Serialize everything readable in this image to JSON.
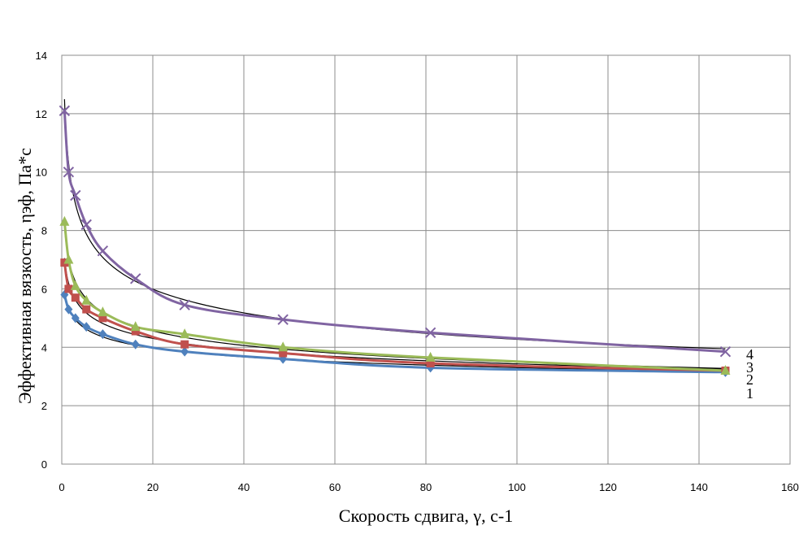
{
  "chart_data": {
    "type": "line",
    "xlabel": "Скорость сдвига, γ, с-1",
    "ylabel": "Эффективная вязкость, ηэф, Па*с",
    "xlim": [
      0,
      160
    ],
    "ylim": [
      0,
      14
    ],
    "x_ticks": [
      "0",
      "20",
      "40",
      "60",
      "80",
      "100",
      "120",
      "140",
      "160"
    ],
    "y_ticks": [
      "0",
      "2",
      "4",
      "6",
      "8",
      "10",
      "12",
      "14"
    ],
    "grid": true,
    "series": [
      {
        "name": "1",
        "color": "#4F81BD",
        "marker": "diamond",
        "x": [
          0.6,
          1.5,
          3,
          5.4,
          9,
          16.2,
          27,
          48.6,
          81,
          145.8
        ],
        "y": [
          5.8,
          5.3,
          5.0,
          4.7,
          4.45,
          4.1,
          3.85,
          3.6,
          3.3,
          3.15
        ]
      },
      {
        "name": "2",
        "color": "#C0504D",
        "marker": "square",
        "x": [
          0.6,
          1.5,
          3,
          5.4,
          9,
          16.2,
          27,
          48.6,
          81,
          145.8
        ],
        "y": [
          6.9,
          6.0,
          5.7,
          5.3,
          5.0,
          4.55,
          4.1,
          3.8,
          3.45,
          3.2
        ]
      },
      {
        "name": "3",
        "color": "#9BBB59",
        "marker": "triangle",
        "x": [
          0.6,
          1.5,
          3,
          5.4,
          9,
          16.2,
          27,
          48.6,
          81,
          145.8
        ],
        "y": [
          8.3,
          7.0,
          6.1,
          5.6,
          5.2,
          4.7,
          4.45,
          4.0,
          3.65,
          3.2
        ]
      },
      {
        "name": "4",
        "color": "#8064A2",
        "marker": "x",
        "x": [
          0.6,
          1.5,
          3,
          5.4,
          9,
          16.2,
          27,
          48.6,
          81,
          145.8
        ],
        "y": [
          12.1,
          10.0,
          9.2,
          8.2,
          7.3,
          6.35,
          5.45,
          4.95,
          4.5,
          3.85
        ]
      }
    ]
  }
}
